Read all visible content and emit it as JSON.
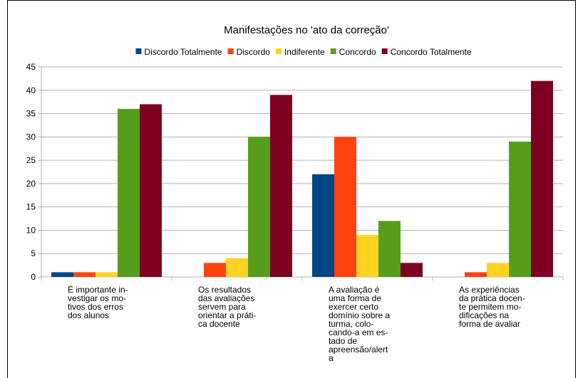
{
  "chart_data": {
    "type": "bar",
    "title": "Manifestações no 'ato da correção'",
    "categories": [
      "É importante in-\nvestigar os mo-\ntivos dos erros\ndos alunos",
      "Os resultados\ndas avaliações\nservem para\norientar a práti-\nca docente",
      "A avaliação é\numa forma de\nexercer certo\ndomínio sobre a\nturma, colo-\ncando-a em es-\ntado de\napreensão/alert\na",
      "As experiências\nda prática docen-\nte permitem mo-\ndificações na\nforma de avaliar"
    ],
    "series": [
      {
        "name": "Discordo Totalmente",
        "color": "#004586",
        "values": [
          1,
          0,
          22,
          0
        ]
      },
      {
        "name": "Discordo",
        "color": "#ff420e",
        "values": [
          1,
          3,
          30,
          1
        ]
      },
      {
        "name": "Indiferente",
        "color": "#ffd320",
        "values": [
          1,
          4,
          9,
          3
        ]
      },
      {
        "name": "Concordo",
        "color": "#579d1c",
        "values": [
          36,
          30,
          12,
          29
        ]
      },
      {
        "name": "Concordo Totalmente",
        "color": "#7e0021",
        "values": [
          37,
          39,
          3,
          42
        ]
      }
    ],
    "ylim": [
      0,
      45
    ],
    "yticks": [
      0,
      5,
      10,
      15,
      20,
      25,
      30,
      35,
      40,
      45
    ],
    "grid": true,
    "legend": "top"
  }
}
